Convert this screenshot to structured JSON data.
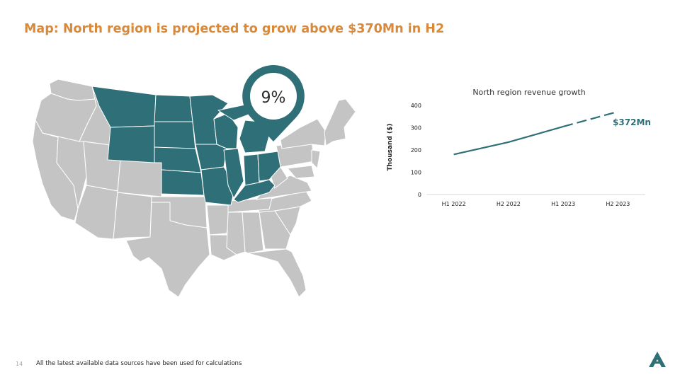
{
  "slide": {
    "title": "Map: North region is projected to grow above $370Mn in H2",
    "page_number": "14",
    "footnote": "All the latest available data sources have been used for calculations"
  },
  "map": {
    "highlight_color": "#2f6f78",
    "base_color": "#c4c4c4",
    "callout": {
      "value": "9%"
    },
    "highlighted_region": [
      "Montana",
      "Wyoming",
      "North Dakota",
      "South Dakota",
      "Nebraska",
      "Kansas",
      "Minnesota",
      "Iowa",
      "Missouri",
      "Wisconsin",
      "Illinois",
      "Michigan",
      "Indiana",
      "Ohio",
      "Kentucky"
    ]
  },
  "chart_data": {
    "type": "line",
    "title": "North region revenue growth",
    "ylabel": "Thousand ($)",
    "xlabel": "",
    "categories": [
      "H1 2022",
      "H2 2022",
      "H1 2023",
      "H2 2023"
    ],
    "values": [
      180,
      235,
      305,
      372
    ],
    "ylim": [
      0,
      400
    ],
    "yticks": [
      0,
      100,
      200,
      300,
      400
    ],
    "projected_from_index": 2,
    "annotation": {
      "text": "$372Mn",
      "category_index": 3
    },
    "line_color": "#2f6f78",
    "grid": false
  }
}
